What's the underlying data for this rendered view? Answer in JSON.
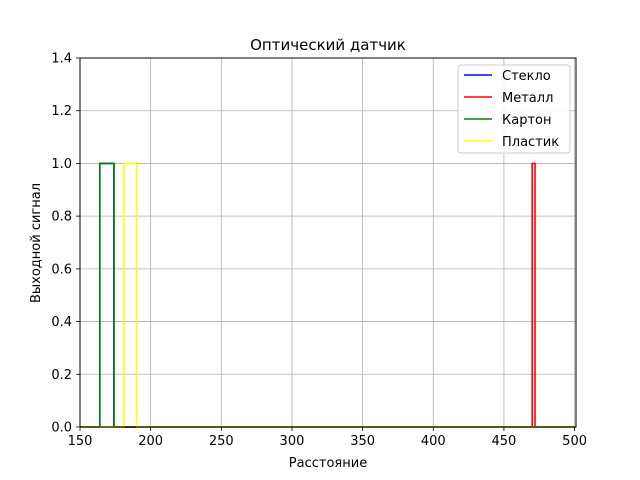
{
  "chart_data": {
    "type": "line",
    "title": "Оптический датчик",
    "xlabel": "Расстояние",
    "ylabel": "Выходной сигнал",
    "xlim": [
      150,
      501
    ],
    "ylim": [
      0,
      1.4
    ],
    "xticks": [
      150,
      200,
      250,
      300,
      350,
      400,
      450,
      500
    ],
    "yticks": [
      0.0,
      0.2,
      0.4,
      0.6,
      0.8,
      1.0,
      1.2,
      1.4
    ],
    "xtick_labels": [
      "150",
      "200",
      "250",
      "300",
      "350",
      "400",
      "450",
      "500"
    ],
    "ytick_labels": [
      "0.0",
      "0.2",
      "0.4",
      "0.6",
      "0.8",
      "1.0",
      "1.2",
      "1.4"
    ],
    "grid": true,
    "legend_position": "top-right",
    "series": [
      {
        "name": "Стекло",
        "color": "#0000ff",
        "x": [
          150,
          164,
          164,
          174,
          174,
          501
        ],
        "y": [
          0,
          0,
          1,
          1,
          0,
          0
        ]
      },
      {
        "name": "Металл",
        "color": "#ff0000",
        "x": [
          150,
          470,
          470,
          472,
          472,
          501
        ],
        "y": [
          0,
          0,
          1,
          1,
          0,
          0
        ]
      },
      {
        "name": "Картон",
        "color": "#008000",
        "x": [
          150,
          164,
          164,
          174,
          174,
          501
        ],
        "y": [
          0,
          0,
          1,
          1,
          0,
          0
        ]
      },
      {
        "name": "Пластик",
        "color": "#ffff00",
        "x": [
          150,
          181,
          181,
          190,
          190,
          501
        ],
        "y": [
          0,
          0,
          1,
          1,
          0,
          0
        ]
      }
    ]
  }
}
